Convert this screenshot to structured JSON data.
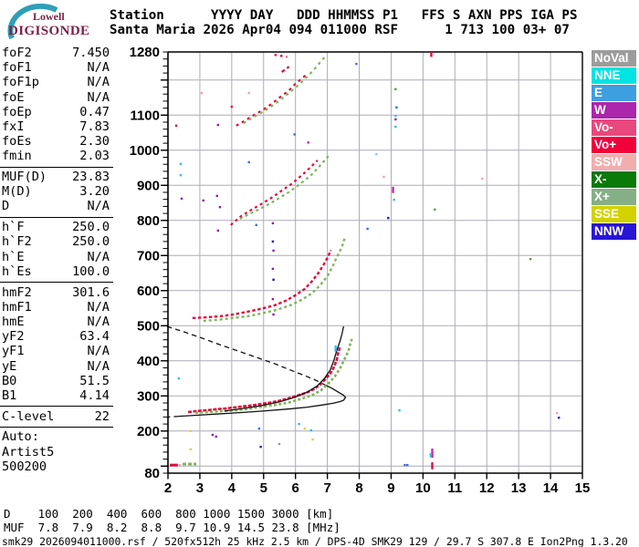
{
  "logo": {
    "top": "Lowell",
    "bottom": "DIGISONDE"
  },
  "header": {
    "line1": "Station      YYYY DAY   DDD HHMMSS P1   FFS S AXN PPS IGA PS",
    "line2": "Santa Maria 2026 Apr04 094 011000 RSF      1 713 100 03+ 07"
  },
  "params": {
    "groups": [
      {
        "rows": [
          [
            "foF2",
            "7.450"
          ],
          [
            "foF1",
            "N/A"
          ],
          [
            "foF1p",
            "N/A"
          ],
          [
            "foE",
            "N/A"
          ],
          [
            "foEp",
            "0.47"
          ],
          [
            "fxI",
            "7.83"
          ],
          [
            "foEs",
            "2.30"
          ],
          [
            "fmin",
            "2.03"
          ]
        ]
      },
      {
        "rows": [
          [
            "MUF(D)",
            "23.83"
          ],
          [
            "M(D)",
            "3.20"
          ],
          [
            "D",
            "N/A"
          ]
        ]
      },
      {
        "rows": [
          [
            "h`F",
            "250.0"
          ],
          [
            "h`F2",
            "250.0"
          ],
          [
            "h`E",
            "N/A"
          ],
          [
            "h`Es",
            "100.0"
          ]
        ]
      },
      {
        "rows": [
          [
            "hmF2",
            "301.6"
          ],
          [
            "hmF1",
            "N/A"
          ],
          [
            "hmE",
            "N/A"
          ],
          [
            "yF2",
            "63.4"
          ],
          [
            "yF1",
            "N/A"
          ],
          [
            "yE",
            "N/A"
          ],
          [
            "B0",
            "51.5"
          ],
          [
            "B1",
            "4.14"
          ]
        ]
      },
      {
        "rows": [
          [
            "C-level",
            "22"
          ]
        ]
      },
      {
        "rows": [
          [
            "Auto:",
            ""
          ],
          [
            "Artist5",
            ""
          ],
          [
            "500200",
            ""
          ]
        ]
      }
    ]
  },
  "legend": [
    {
      "label": "NoVal",
      "color": "#9C9C9C"
    },
    {
      "label": "NNE",
      "color": "#00E3E3"
    },
    {
      "label": "E",
      "color": "#3D9EE0"
    },
    {
      "label": "W",
      "color": "#AC26AC"
    },
    {
      "label": "Vo-",
      "color": "#E8487C"
    },
    {
      "label": "Vo+",
      "color": "#F2003C"
    },
    {
      "label": "SSW",
      "color": "#F2AEAE"
    },
    {
      "label": "X-",
      "color": "#0A7A0A"
    },
    {
      "label": "X+",
      "color": "#85B085"
    },
    {
      "label": "SSE",
      "color": "#D2D200"
    },
    {
      "label": "NNW",
      "color": "#2A14D6"
    }
  ],
  "chart_data": {
    "type": "scatter",
    "xlim": [
      2,
      15
    ],
    "ylim": [
      80,
      1280
    ],
    "x_ticks": [
      2,
      3,
      4,
      5,
      6,
      7,
      8,
      9,
      10,
      11,
      12,
      13,
      14,
      15
    ],
    "y_tick_labels": [
      1280,
      1100,
      1000,
      900,
      800,
      700,
      600,
      500,
      400,
      300,
      200,
      80
    ],
    "grid": true,
    "series": [
      {
        "name": "F-trace-ordinary-1hop",
        "color": "#DF0D3C",
        "dash": "4 1.5",
        "width": 2.6,
        "points": [
          [
            2.63,
            254
          ],
          [
            2.91,
            257
          ],
          [
            3.2,
            259
          ],
          [
            3.49,
            262
          ],
          [
            3.77,
            264
          ],
          [
            4.06,
            267
          ],
          [
            4.34,
            270
          ],
          [
            4.63,
            273
          ],
          [
            4.91,
            277
          ],
          [
            5.2,
            281
          ],
          [
            5.49,
            286
          ],
          [
            5.77,
            293
          ],
          [
            6.06,
            301
          ],
          [
            6.34,
            309
          ],
          [
            6.57,
            319
          ],
          [
            6.77,
            332
          ],
          [
            6.94,
            348
          ],
          [
            7.09,
            363
          ],
          [
            7.2,
            381
          ],
          [
            7.29,
            402
          ],
          [
            7.34,
            423
          ],
          [
            7.4,
            441
          ]
        ]
      },
      {
        "name": "F-trace-extraordinary-1hop",
        "color": "#82B35E",
        "dash": "3 2.4",
        "width": 2.6,
        "points": [
          [
            2.86,
            252
          ],
          [
            3.29,
            254
          ],
          [
            3.71,
            257
          ],
          [
            4.14,
            259
          ],
          [
            4.57,
            264
          ],
          [
            5.0,
            270
          ],
          [
            5.43,
            275
          ],
          [
            5.86,
            283
          ],
          [
            6.23,
            293
          ],
          [
            6.54,
            303
          ],
          [
            6.8,
            316
          ],
          [
            7.03,
            335
          ],
          [
            7.23,
            355
          ],
          [
            7.4,
            379
          ],
          [
            7.54,
            405
          ],
          [
            7.66,
            428
          ],
          [
            7.71,
            446
          ],
          [
            7.77,
            462
          ]
        ]
      },
      {
        "name": "F-trace-ordinary-2hop",
        "color": "#DF0D3C",
        "dash": "3.5 2.5",
        "width": 2.4,
        "points": [
          [
            2.77,
            522
          ],
          [
            3.2,
            524
          ],
          [
            3.63,
            527
          ],
          [
            4.06,
            532
          ],
          [
            4.49,
            540
          ],
          [
            4.91,
            548
          ],
          [
            5.34,
            558
          ],
          [
            5.69,
            571
          ],
          [
            6.0,
            587
          ],
          [
            6.29,
            605
          ],
          [
            6.51,
            626
          ],
          [
            6.71,
            649
          ],
          [
            6.89,
            675
          ],
          [
            7.03,
            698
          ],
          [
            7.11,
            716
          ]
        ]
      },
      {
        "name": "F-trace-extraordinary-2hop",
        "color": "#82B35E",
        "dash": "3 3",
        "width": 2.4,
        "points": [
          [
            3.11,
            514
          ],
          [
            3.57,
            517
          ],
          [
            4.03,
            522
          ],
          [
            4.49,
            527
          ],
          [
            4.94,
            535
          ],
          [
            5.4,
            545
          ],
          [
            5.83,
            558
          ],
          [
            6.2,
            574
          ],
          [
            6.51,
            592
          ],
          [
            6.77,
            615
          ],
          [
            7.0,
            641
          ],
          [
            7.17,
            670
          ],
          [
            7.31,
            698
          ],
          [
            7.46,
            724
          ],
          [
            7.51,
            742
          ],
          [
            7.57,
            752
          ]
        ]
      },
      {
        "name": "F-trace-ordinary-3hop",
        "color": "#DF0D3C",
        "dash": "3 3.5",
        "width": 2.2,
        "points": [
          [
            3.97,
            787
          ],
          [
            4.29,
            812
          ],
          [
            4.63,
            831
          ],
          [
            4.97,
            849
          ],
          [
            5.29,
            867
          ],
          [
            5.57,
            885
          ],
          [
            5.86,
            903
          ],
          [
            6.11,
            922
          ],
          [
            6.34,
            940
          ],
          [
            6.54,
            958
          ],
          [
            6.69,
            971
          ]
        ]
      },
      {
        "name": "F-trace-extraordinary-3hop",
        "color": "#82B35E",
        "dash": "3 3.5",
        "width": 2.2,
        "points": [
          [
            4.26,
            805
          ],
          [
            4.66,
            823
          ],
          [
            5.06,
            841
          ],
          [
            5.46,
            862
          ],
          [
            5.83,
            883
          ],
          [
            6.17,
            906
          ],
          [
            6.49,
            929
          ],
          [
            6.74,
            953
          ],
          [
            6.94,
            974
          ],
          [
            7.09,
            989
          ]
        ]
      },
      {
        "name": "F-trace-ordinary-4hop",
        "color": "#DF0D3C",
        "dash": "3 4",
        "width": 2.2,
        "points": [
          [
            4.14,
            1070
          ],
          [
            4.43,
            1085
          ],
          [
            4.71,
            1101
          ],
          [
            5.0,
            1116
          ],
          [
            5.29,
            1135
          ],
          [
            5.54,
            1153
          ],
          [
            5.77,
            1168
          ],
          [
            5.97,
            1187
          ],
          [
            6.14,
            1200
          ],
          [
            6.31,
            1213
          ]
        ]
      },
      {
        "name": "F-trace-ordinary-4hop-upper",
        "color": "#DF0D3C",
        "dash": "4 3",
        "width": 2.2,
        "points": [
          [
            5.57,
            1223
          ],
          [
            5.69,
            1231
          ],
          [
            5.8,
            1238
          ]
        ]
      },
      {
        "name": "F-trace-extraordinary-4hop",
        "color": "#82B35E",
        "dash": "3 4",
        "width": 2.2,
        "points": [
          [
            4.37,
            1077
          ],
          [
            4.71,
            1096
          ],
          [
            5.06,
            1114
          ],
          [
            5.4,
            1135
          ],
          [
            5.69,
            1155
          ],
          [
            5.97,
            1176
          ],
          [
            6.23,
            1197
          ],
          [
            6.46,
            1218
          ],
          [
            6.66,
            1238
          ],
          [
            6.83,
            1257
          ],
          [
            6.94,
            1267
          ]
        ]
      },
      {
        "name": "Es-trace-ordinary",
        "color": "#DF0D3C",
        "dash": "",
        "width": 3,
        "points": [
          [
            2.06,
            103
          ],
          [
            2.31,
            103
          ]
        ]
      },
      {
        "name": "Es-trace-extraordinary",
        "color": "#82B35E",
        "dash": "4 2",
        "width": 3,
        "points": [
          [
            2.46,
            106
          ],
          [
            2.89,
            106
          ]
        ]
      },
      {
        "name": "top-edge-echoes",
        "color": "#DF0D3C",
        "dash": "2.5 4",
        "width": 2.4,
        "points": [
          [
            5.34,
            1272
          ],
          [
            5.54,
            1269
          ],
          [
            5.74,
            1266
          ]
        ]
      }
    ],
    "curves": [
      {
        "name": "muf-transmission-curve",
        "style": "dashed",
        "points": [
          [
            1.97,
            498
          ],
          [
            2.49,
            483
          ],
          [
            3.06,
            465
          ],
          [
            3.63,
            446
          ],
          [
            4.2,
            428
          ],
          [
            4.77,
            410
          ],
          [
            5.34,
            392
          ],
          [
            5.86,
            373
          ],
          [
            6.29,
            358
          ],
          [
            6.63,
            345
          ],
          [
            6.91,
            332
          ]
        ]
      },
      {
        "name": "profile-nose",
        "style": "solid",
        "points": [
          [
            6.91,
            332
          ],
          [
            7.14,
            322
          ],
          [
            7.34,
            311
          ],
          [
            7.49,
            303
          ],
          [
            7.57,
            296
          ],
          [
            7.51,
            288
          ],
          [
            7.4,
            284
          ],
          [
            7.17,
            279
          ],
          [
            6.83,
            274
          ],
          [
            6.37,
            268
          ],
          [
            5.8,
            263
          ],
          [
            5.11,
            258
          ],
          [
            4.37,
            253
          ],
          [
            3.63,
            249
          ],
          [
            2.89,
            245
          ],
          [
            2.34,
            242
          ]
        ]
      },
      {
        "name": "profile-tail",
        "style": "dashed",
        "points": [
          [
            2.34,
            242
          ],
          [
            1.99,
            240
          ]
        ]
      },
      {
        "name": "artist-fitted-trace",
        "style": "solid",
        "points": [
          [
            3.77,
            257
          ],
          [
            4.34,
            264
          ],
          [
            4.91,
            272
          ],
          [
            5.49,
            283
          ],
          [
            5.97,
            296
          ],
          [
            6.37,
            311
          ],
          [
            6.69,
            329
          ],
          [
            6.91,
            350
          ],
          [
            7.09,
            374
          ],
          [
            7.2,
            400
          ],
          [
            7.29,
            428
          ],
          [
            7.4,
            457
          ],
          [
            7.46,
            477
          ],
          [
            7.49,
            490
          ],
          [
            7.51,
            498
          ]
        ]
      }
    ],
    "noise_colors": {
      "c": "#33BBE8",
      "b": "#3B6BE0",
      "n": "#1A1AB8",
      "p": "#8822AA",
      "m": "#CC22AA",
      "k": "#F2A0B8",
      "y": "#DFCE4E",
      "g": "#55A040",
      "t": "#118888",
      "s": "#8899BB",
      "r": "#DF0D3C",
      "l": "#88C4F0"
    },
    "noise_dots": [
      [
        2.26,
        1070,
        "r"
      ],
      [
        4.0,
        1124,
        "r"
      ],
      [
        4.54,
        1163,
        "k"
      ],
      [
        3.57,
        1072,
        "p"
      ],
      [
        2.4,
        961,
        "c"
      ],
      [
        2.4,
        929,
        "c"
      ],
      [
        4.54,
        966,
        "b"
      ],
      [
        2.43,
        862,
        "p"
      ],
      [
        3.54,
        870,
        "p"
      ],
      [
        3.11,
        857,
        "p"
      ],
      [
        3.63,
        838,
        "p"
      ],
      [
        4.77,
        787,
        "b"
      ],
      [
        3.57,
        771,
        "p"
      ],
      [
        7.91,
        1246,
        "b"
      ],
      [
        9.14,
        1174,
        "g"
      ],
      [
        9.17,
        1122,
        "t"
      ],
      [
        9.14,
        1098,
        "c"
      ],
      [
        9.14,
        1088,
        "p"
      ],
      [
        9.14,
        1067,
        "c"
      ],
      [
        8.54,
        989,
        "l"
      ],
      [
        8.77,
        924,
        "k"
      ],
      [
        11.86,
        919,
        "k"
      ],
      [
        9.09,
        859,
        "c"
      ],
      [
        8.91,
        807,
        "n"
      ],
      [
        10.37,
        831,
        "g"
      ],
      [
        8.26,
        776,
        "b"
      ],
      [
        13.37,
        690,
        "g"
      ],
      [
        5.29,
        792,
        "p"
      ],
      [
        5.29,
        740,
        "n"
      ],
      [
        5.31,
        714,
        "p"
      ],
      [
        5.29,
        662,
        "p"
      ],
      [
        5.31,
        631,
        "n"
      ],
      [
        5.29,
        576,
        "p"
      ],
      [
        5.31,
        532,
        "p"
      ],
      [
        2.34,
        350,
        "c"
      ],
      [
        2.71,
        200,
        "y"
      ],
      [
        3.4,
        189,
        "p"
      ],
      [
        3.51,
        184,
        "p"
      ],
      [
        4.86,
        207,
        "b"
      ],
      [
        4.91,
        155,
        "n"
      ],
      [
        5.49,
        163,
        "s"
      ],
      [
        6.11,
        220,
        "c"
      ],
      [
        6.29,
        207,
        "y"
      ],
      [
        6.49,
        202,
        "c"
      ],
      [
        6.54,
        176,
        "y"
      ],
      [
        9.43,
        103,
        "b"
      ],
      [
        9.51,
        103,
        "b"
      ],
      [
        9.26,
        259,
        "c"
      ],
      [
        14.2,
        251,
        "k"
      ],
      [
        14.26,
        238,
        "n"
      ],
      [
        2.71,
        148,
        "y"
      ],
      [
        7.26,
        430,
        "b"
      ],
      [
        2.37,
        103,
        "k"
      ],
      [
        3.06,
        1163,
        "k"
      ],
      [
        6.4,
        1022,
        "m"
      ],
      [
        5.97,
        1045,
        "b"
      ]
    ],
    "rfi_bars": [
      [
        10.29,
        150,
        124,
        "m"
      ],
      [
        10.29,
        111,
        91,
        "r"
      ],
      [
        10.24,
        137,
        125,
        "c"
      ],
      [
        10.26,
        1280,
        1266,
        "r"
      ],
      [
        9.06,
        896,
        878,
        "m"
      ],
      [
        7.26,
        444,
        429,
        "c"
      ]
    ]
  },
  "bottom": {
    "d_row": "D    100  200  400  600  800 1000 1500 3000 [km]",
    "muf_row": "MUF  7.8  7.9  8.2  8.8  9.7 10.9 14.5 23.8 [MHz]",
    "status": "smk29_2026094011000.rsf / 520fx512h 25 kHz 2.5 km / DPS-4D SMK29 129 / 29.7 S 307.8 E Ion2Png 1.3.20"
  }
}
